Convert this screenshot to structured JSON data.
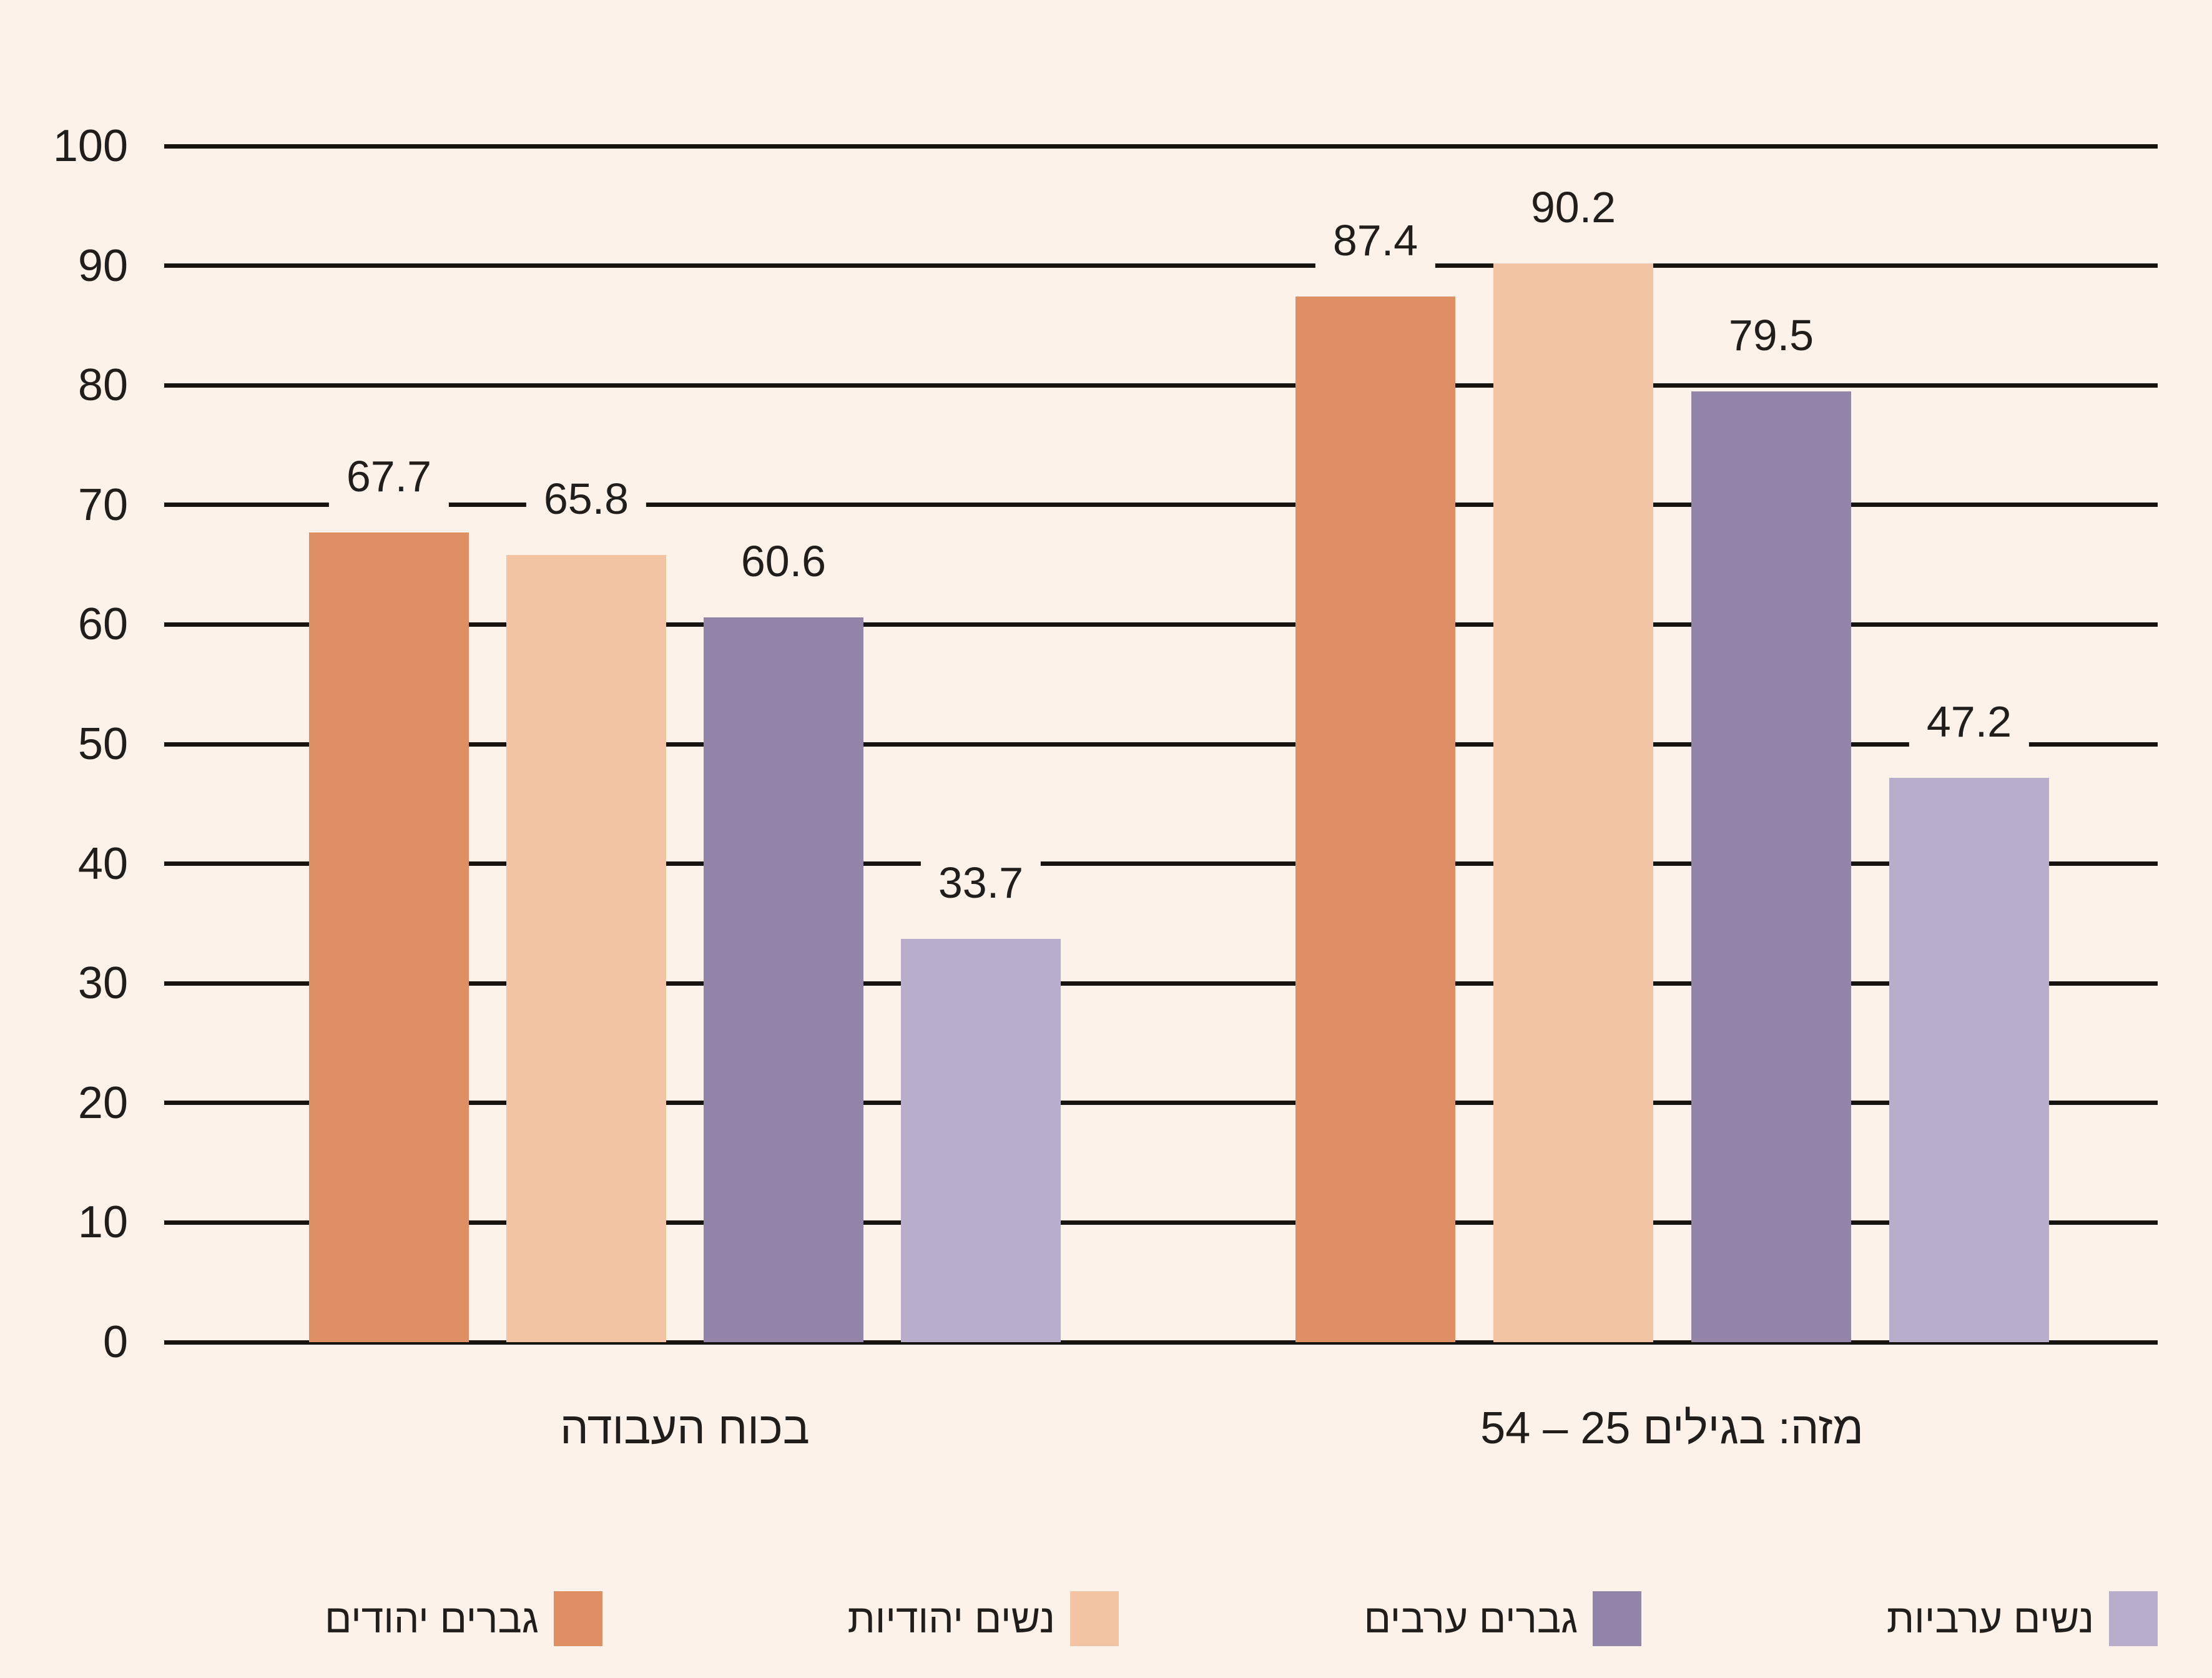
{
  "colors": {
    "background": "#FCF2E9",
    "grid_line": "#17130F",
    "text": "#201D1A",
    "jewish_men": "#DE8F63",
    "jewish_women": "#F3C4A3",
    "arab_men": "#9285A9",
    "arab_women": "#B8ADCB"
  },
  "chart_data": {
    "type": "bar",
    "title": "",
    "direction": "rtl",
    "categories": [
      "בכוח העבודה",
      "מזה: בגילים 25 – 54"
    ],
    "series": [
      {
        "name": "גברים יהודים",
        "color": "#DE8F63",
        "values": [
          67.7,
          87.4
        ]
      },
      {
        "name": "נשים יהודיות",
        "color": "#F3C4A3",
        "values": [
          65.8,
          90.2
        ]
      },
      {
        "name": "גברים ערבים",
        "color": "#9285A9",
        "values": [
          60.6,
          79.5
        ]
      },
      {
        "name": "נשים ערביות",
        "color": "#B8ADCB",
        "values": [
          33.7,
          47.2
        ]
      }
    ],
    "value_labels": [
      "67.7",
      "65.8",
      "60.6",
      "33.7",
      "87.4",
      "90.2",
      "79.5",
      "47.2"
    ],
    "ylim": [
      0,
      100
    ],
    "yticks": [
      0,
      10,
      20,
      30,
      40,
      50,
      60,
      70,
      80,
      90,
      100
    ],
    "grid": true,
    "legend_position": "bottom"
  }
}
